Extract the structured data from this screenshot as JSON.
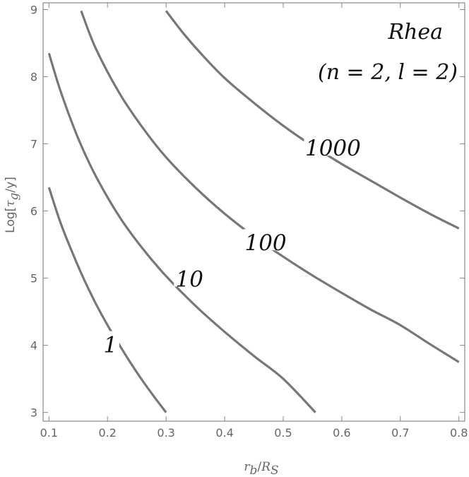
{
  "chart_data": {
    "type": "line",
    "title": "",
    "xlabel": "r_b/R_S",
    "xlabel_parts": {
      "r": "r",
      "b": "b",
      "slash": "/",
      "R": "R",
      "S": "S"
    },
    "ylabel": "Log[τ_g/y]",
    "ylabel_parts": {
      "pre": "Log[",
      "tau": "τ",
      "g": "g",
      "post": "/y]"
    },
    "xlim": [
      0.09,
      0.81
    ],
    "ylim": [
      2.87,
      9.1
    ],
    "xticks": [
      0.1,
      0.2,
      0.3,
      0.4,
      0.5,
      0.6,
      0.7,
      0.8
    ],
    "xtick_labels": [
      "0.1",
      "0.2",
      "0.3",
      "0.4",
      "0.5",
      "0.6",
      "0.7",
      "0.8"
    ],
    "yticks": [
      3,
      4,
      5,
      6,
      7,
      8,
      9
    ],
    "ytick_labels": [
      "3",
      "4",
      "5",
      "6",
      "7",
      "8",
      "9"
    ],
    "grid": false,
    "annotations": [
      "Rhea",
      "(n = 2,  l = 2)"
    ],
    "series": [
      {
        "label": "1",
        "label_at": [
          0.205,
          4.0
        ],
        "x": [
          0.1,
          0.12,
          0.14,
          0.16,
          0.18,
          0.2,
          0.22,
          0.24,
          0.26,
          0.28,
          0.3
        ],
        "y": [
          6.35,
          5.82,
          5.38,
          4.98,
          4.62,
          4.3,
          4.01,
          3.73,
          3.47,
          3.23,
          3.0
        ]
      },
      {
        "label": "10",
        "label_at": [
          0.34,
          4.98
        ],
        "x": [
          0.1,
          0.12,
          0.15,
          0.18,
          0.22,
          0.26,
          0.3,
          0.35,
          0.4,
          0.45,
          0.5,
          0.555
        ],
        "y": [
          8.35,
          7.78,
          7.08,
          6.52,
          5.92,
          5.44,
          5.03,
          4.59,
          4.2,
          3.84,
          3.5,
          3.0
        ]
      },
      {
        "label": "100",
        "label_at": [
          0.47,
          5.52
        ],
        "x": [
          0.155,
          0.18,
          0.22,
          0.26,
          0.3,
          0.35,
          0.4,
          0.45,
          0.5,
          0.55,
          0.6,
          0.65,
          0.7,
          0.75,
          0.8
        ],
        "y": [
          8.98,
          8.42,
          7.76,
          7.24,
          6.8,
          6.35,
          5.96,
          5.62,
          5.32,
          5.04,
          4.78,
          4.53,
          4.3,
          4.02,
          3.75
        ]
      },
      {
        "label": "1000",
        "label_at": [
          0.585,
          6.93
        ],
        "x": [
          0.3,
          0.33,
          0.36,
          0.4,
          0.45,
          0.5,
          0.55,
          0.6,
          0.65,
          0.7,
          0.75,
          0.8
        ],
        "y": [
          8.98,
          8.64,
          8.34,
          7.98,
          7.61,
          7.27,
          6.97,
          6.7,
          6.45,
          6.2,
          5.96,
          5.74
        ]
      }
    ]
  }
}
